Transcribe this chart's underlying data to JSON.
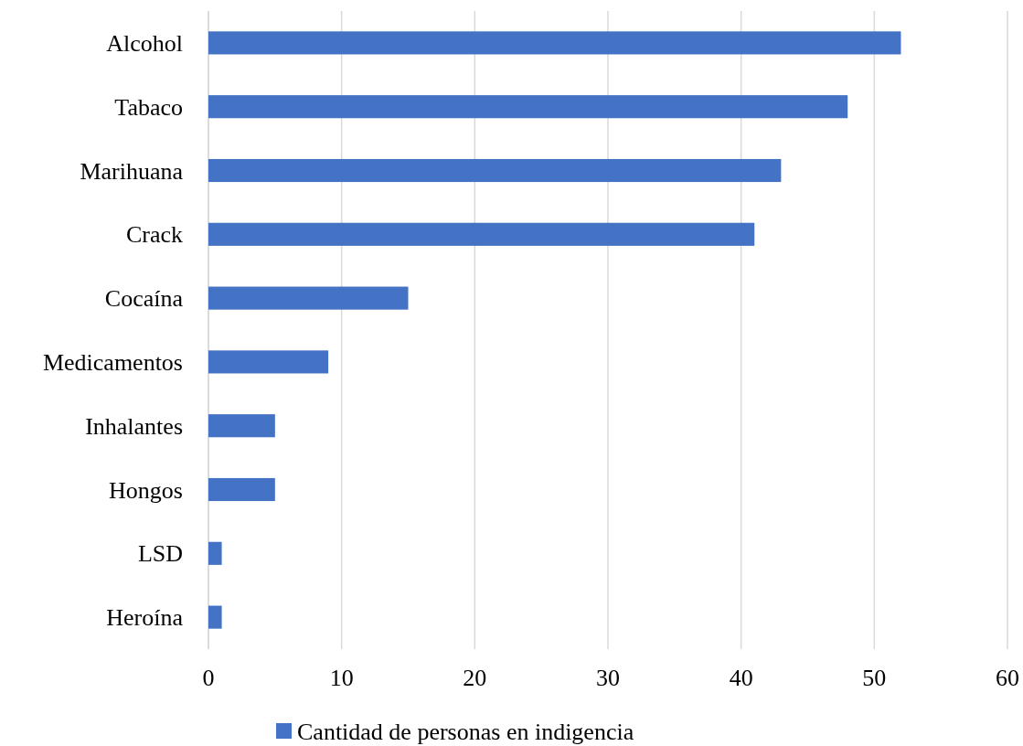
{
  "chart_data": {
    "type": "bar",
    "orientation": "horizontal",
    "categories": [
      "Alcohol",
      "Tabaco",
      "Marihuana",
      "Crack",
      "Cocaína",
      "Medicamentos",
      "Inhalantes",
      "Hongos",
      "LSD",
      "Heroína"
    ],
    "series": [
      {
        "name": "Cantidad de personas en indigencia",
        "color": "#4472c4",
        "values": [
          52,
          48,
          43,
          41,
          15,
          9,
          5,
          5,
          1,
          1
        ]
      }
    ],
    "xlim": [
      0,
      60
    ],
    "xticks": [
      0,
      10,
      20,
      30,
      40,
      50,
      60
    ],
    "grid": "x",
    "legend": "bottom"
  }
}
